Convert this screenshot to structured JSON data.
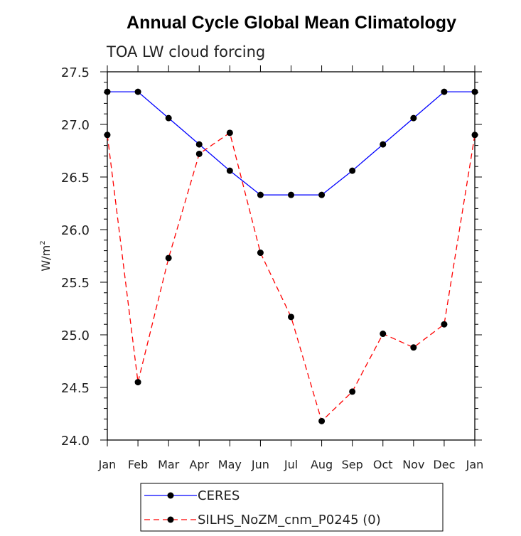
{
  "chart_data": {
    "type": "line",
    "title": "Annual Cycle Global Mean Climatology",
    "subtitle": "TOA LW cloud forcing",
    "ylabel": "W/m",
    "ylabel_superscript": "2",
    "xlabel": "",
    "ylim": [
      24.0,
      27.5
    ],
    "yticks": [
      "24.0",
      "24.5",
      "25.0",
      "25.5",
      "26.0",
      "26.5",
      "27.0",
      "27.5"
    ],
    "ytick_values": [
      24.0,
      24.5,
      25.0,
      25.5,
      26.0,
      26.5,
      27.0,
      27.5
    ],
    "categories": [
      "Jan",
      "Feb",
      "Mar",
      "Apr",
      "May",
      "Jun",
      "Jul",
      "Aug",
      "Sep",
      "Oct",
      "Nov",
      "Dec",
      "Jan"
    ],
    "series": [
      {
        "name": "CERES",
        "color": "#0000ff",
        "style": "solid",
        "values": [
          27.31,
          27.31,
          27.06,
          26.81,
          26.56,
          26.33,
          26.33,
          26.33,
          26.56,
          26.81,
          27.06,
          27.31,
          27.31
        ]
      },
      {
        "name": "SILHS_NoZM_cnm_P0245 (0)",
        "color": "#ff0000",
        "style": "dashed",
        "values": [
          26.9,
          24.55,
          25.73,
          26.72,
          26.92,
          25.78,
          25.17,
          24.18,
          24.46,
          25.01,
          24.88,
          25.1,
          26.9
        ]
      }
    ],
    "grid": false,
    "legend_position": "bottom"
  }
}
